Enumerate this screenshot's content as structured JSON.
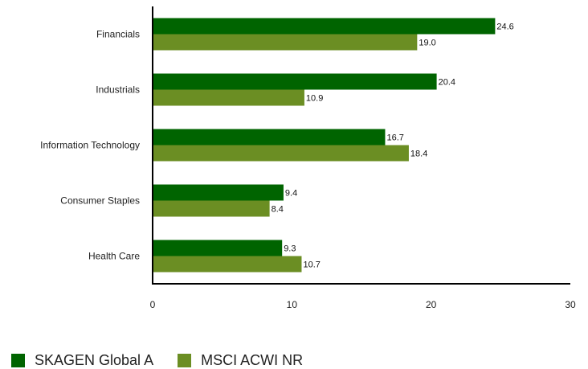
{
  "chart_data": {
    "type": "bar",
    "orientation": "horizontal",
    "categories": [
      "Financials",
      "Industrials",
      "Information Technology",
      "Consumer Staples",
      "Health Care"
    ],
    "series": [
      {
        "name": "SKAGEN Global A",
        "color": "#006400",
        "values": [
          24.6,
          20.4,
          16.7,
          9.4,
          9.3
        ]
      },
      {
        "name": "MSCI ACWI NR",
        "color": "#6b8e23",
        "values": [
          19.0,
          10.9,
          18.4,
          8.4,
          10.7
        ]
      }
    ],
    "value_labels": [
      [
        "24.6",
        "20.4",
        "16.7",
        "9.4",
        "9.3"
      ],
      [
        "19.0",
        "10.9",
        "18.4",
        "8.4",
        "10.7"
      ]
    ],
    "xlim": [
      0,
      30
    ],
    "xticks": [
      "0",
      "10",
      "20",
      "30"
    ],
    "grid": false,
    "legend_position": "bottom-left"
  }
}
